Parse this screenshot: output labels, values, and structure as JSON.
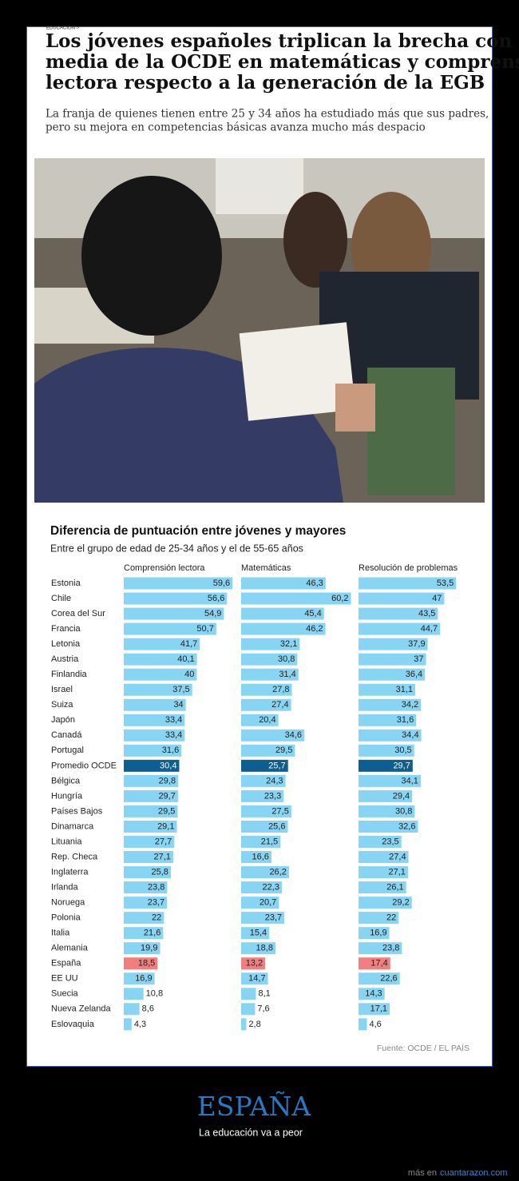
{
  "article": {
    "section": "EDUCACIÓN >",
    "headline": [
      "Los jóvenes españoles triplican la brecha con la",
      "media de la OCDE en matemáticas y comprensión",
      "lectora respecto a la generación de la EGB"
    ],
    "standfirst": [
      "La franja de quienes tienen entre 25 y 34 años ha estudiado más que sus padres,",
      "pero su mejora en competencias básicas avanza mucho más despacio"
    ]
  },
  "chart_data": {
    "type": "bar",
    "orientation": "horizontal",
    "title": "Diferencia de puntuación entre jóvenes y mayores",
    "subtitle": "Entre el grupo de edad de 25-34 años y el de 55-65 años",
    "source": "Fuente: OCDE / EL PAÍS",
    "categories": [
      "Estonia",
      "Chile",
      "Corea del Sur",
      "Francia",
      "Letonia",
      "Austria",
      "Finlandia",
      "Israel",
      "Suiza",
      "Japón",
      "Canadá",
      "Portugal",
      "Promedio OCDE",
      "Bélgica",
      "Hungría",
      "Países Bajos",
      "Dinamarca",
      "Lituania",
      "Rep. Checa",
      "Inglaterra",
      "Irlanda",
      "Noruega",
      "Polonia",
      "Italia",
      "Alemania",
      "España",
      "EE UU",
      "Suecia",
      "Nueva Zelanda",
      "Eslovaquia"
    ],
    "colors": [
      "#88d4f3",
      "#88d4f3",
      "#88d4f3",
      "#88d4f3",
      "#88d4f3",
      "#88d4f3",
      "#88d4f3",
      "#88d4f3",
      "#88d4f3",
      "#88d4f3",
      "#88d4f3",
      "#88d4f3",
      "#0e5f91",
      "#88d4f3",
      "#88d4f3",
      "#88d4f3",
      "#88d4f3",
      "#88d4f3",
      "#88d4f3",
      "#88d4f3",
      "#88d4f3",
      "#88d4f3",
      "#88d4f3",
      "#88d4f3",
      "#88d4f3",
      "#f08080",
      "#88d4f3",
      "#88d4f3",
      "#88d4f3",
      "#88d4f3"
    ],
    "series": [
      {
        "name": "Comprensión lectora",
        "values": [
          59.6,
          56.6,
          54.9,
          50.7,
          41.7,
          40.1,
          40,
          37.5,
          34,
          33.4,
          33.4,
          31.6,
          30.4,
          29.8,
          29.7,
          29.5,
          29.1,
          27.7,
          27.1,
          25.8,
          23.8,
          23.7,
          22,
          21.6,
          19.9,
          18.5,
          16.9,
          10.8,
          8.6,
          4.3
        ],
        "value_labels": [
          "59,6",
          "56,6",
          "54,9",
          "50,7",
          "41,7",
          "40,1",
          "40",
          "37,5",
          "34",
          "33,4",
          "33,4",
          "31,6",
          "30,4",
          "29,8",
          "29,7",
          "29,5",
          "29,1",
          "27,7",
          "27,1",
          "25,8",
          "23,8",
          "23,7",
          "22",
          "21,6",
          "19,9",
          "18,5",
          "16,9",
          "10,8",
          "8,6",
          "4,3"
        ]
      },
      {
        "name": "Matemáticas",
        "values": [
          46.3,
          60.2,
          45.4,
          46.2,
          32.1,
          30.8,
          31.4,
          27.8,
          27.4,
          20.4,
          34.6,
          29.5,
          25.7,
          24.3,
          23.3,
          27.5,
          25.6,
          21.5,
          16.6,
          26.2,
          22.3,
          20.7,
          23.7,
          15.4,
          18.8,
          13.2,
          14.7,
          8.1,
          7.6,
          2.8
        ],
        "value_labels": [
          "46,3",
          "60,2",
          "45,4",
          "46,2",
          "32,1",
          "30,8",
          "31,4",
          "27,8",
          "27,4",
          "20,4",
          "34,6",
          "29,5",
          "25,7",
          "24,3",
          "23,3",
          "27,5",
          "25,6",
          "21,5",
          "16,6",
          "26,2",
          "22,3",
          "20,7",
          "23,7",
          "15,4",
          "18,8",
          "13,2",
          "14,7",
          "8,1",
          "7,6",
          "2,8"
        ]
      },
      {
        "name": "Resolución de problemas",
        "values": [
          53.5,
          47,
          43.5,
          44.7,
          37.9,
          37,
          36.4,
          31.1,
          34.2,
          31.6,
          34.4,
          30.5,
          29.7,
          34.1,
          29.4,
          30.8,
          32.6,
          23.5,
          27.4,
          27.1,
          26.1,
          29.2,
          22,
          16.9,
          23.8,
          17.4,
          22.6,
          14.3,
          17.1,
          4.6
        ],
        "value_labels": [
          "53,5",
          "47",
          "43,5",
          "44,7",
          "37,9",
          "37",
          "36,4",
          "31,1",
          "34,2",
          "31,6",
          "34,4",
          "30,5",
          "29,7",
          "34,1",
          "29,4",
          "30,8",
          "32,6",
          "23,5",
          "27,4",
          "27,1",
          "26,1",
          "29,2",
          "22",
          "16,9",
          "23,8",
          "17,4",
          "22,6",
          "14,3",
          "17,1",
          "4,6"
        ]
      }
    ]
  },
  "meme": {
    "title": "ESPAÑA",
    "caption": "La educación va a peor"
  },
  "footer": {
    "prefix": "más en",
    "link": "cuantarazon.com"
  }
}
